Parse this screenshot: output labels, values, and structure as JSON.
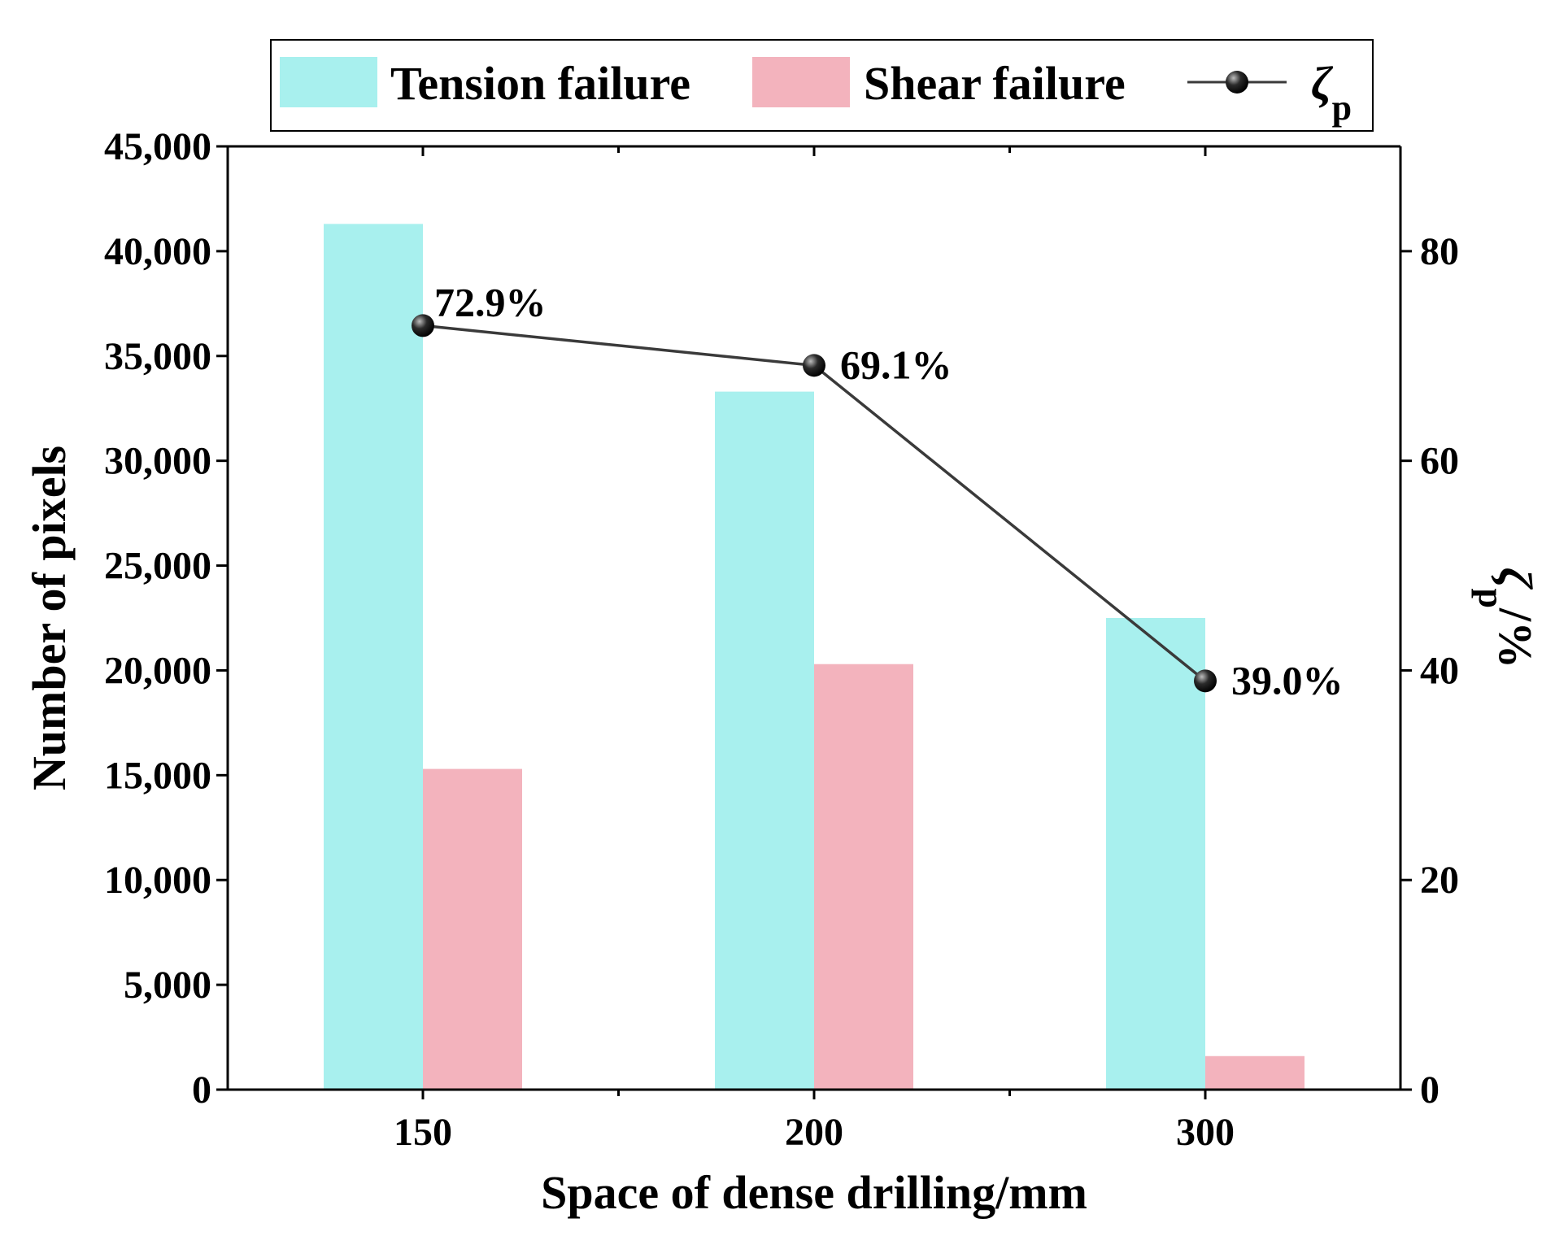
{
  "chart_data": {
    "type": "bar",
    "title": "",
    "categories": [
      "150",
      "200",
      "300"
    ],
    "xlabel": "Space of dense drilling/mm",
    "ylabel": "Number of pixels",
    "ylim": [
      0,
      45000
    ],
    "yticks": [
      0,
      5000,
      10000,
      15000,
      20000,
      25000,
      30000,
      35000,
      40000,
      45000
    ],
    "ytick_labels": [
      "0",
      "5,000",
      "10,000",
      "15,000",
      "20,000",
      "25,000",
      "30,000",
      "35,000",
      "40,000",
      "45,000"
    ],
    "y2label_main": "ζ",
    "y2label_sub": "p",
    "y2label_tail": "/%",
    "y2lim": [
      0,
      90
    ],
    "y2ticks": [
      0,
      20,
      40,
      60,
      80
    ],
    "y2tick_labels": [
      "0",
      "20",
      "40",
      "60",
      "80"
    ],
    "series": [
      {
        "name": "Tension failure",
        "kind": "bar",
        "axis": "left",
        "color": "#a8f0ee",
        "values": [
          41300,
          33300,
          22500
        ]
      },
      {
        "name": "Shear failure",
        "kind": "bar",
        "axis": "left",
        "color": "#f3b3bd",
        "values": [
          15300,
          20300,
          1600
        ]
      },
      {
        "name": "ζ",
        "name_sub": "p",
        "kind": "line",
        "axis": "right",
        "color": "#3a3a3a",
        "marker_color": "#000000",
        "values": [
          72.9,
          69.1,
          39.0
        ],
        "labels": [
          "72.9%",
          "69.1%",
          "39.0%"
        ]
      }
    ],
    "legend_position": "top"
  }
}
